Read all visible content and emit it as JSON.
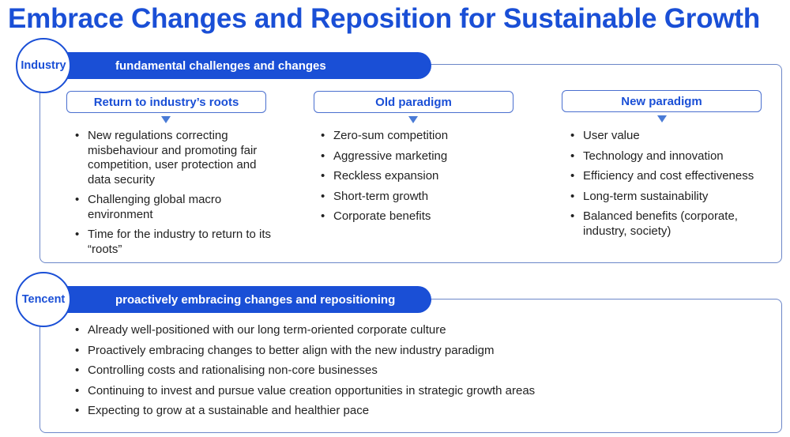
{
  "title": "Embrace Changes and Reposition for Sustainable Growth",
  "industry": {
    "badge": "Industry",
    "banner": "fundamental challenges and changes",
    "columns": [
      {
        "header": "Return to industry’s roots",
        "items": [
          "New regulations correcting misbehaviour and promoting fair competition, user protection and data security",
          "Challenging global macro environment",
          "Time for the industry to return to its “roots”"
        ]
      },
      {
        "header": "Old paradigm",
        "items": [
          "Zero-sum competition",
          "Aggressive marketing",
          "Reckless expansion",
          "Short-term growth",
          "Corporate benefits"
        ]
      },
      {
        "header": "New paradigm",
        "items": [
          "User value",
          "Technology and innovation",
          "Efficiency and cost effectiveness",
          "Long-term sustainability",
          "Balanced benefits (corporate, industry, society)"
        ]
      }
    ]
  },
  "tencent": {
    "badge": "Tencent",
    "banner": "proactively embracing changes and repositioning",
    "items": [
      "Already well-positioned with our long term-oriented corporate culture",
      "Proactively embracing changes to better align with the new industry paradigm",
      "Controlling costs and rationalising non-core businesses",
      "Continuing to invest and pursue value creation opportunities in strategic growth areas",
      "Expecting to grow at a sustainable and healthier pace"
    ]
  }
}
